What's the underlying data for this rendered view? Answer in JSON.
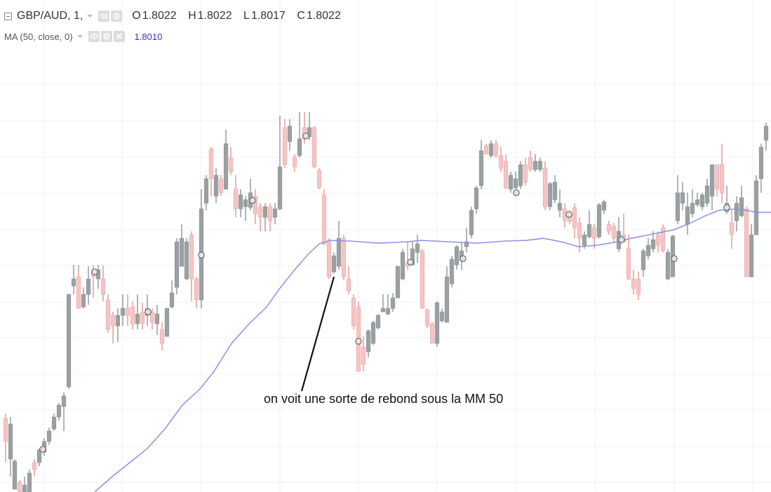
{
  "legend": {
    "symbol": "GBP/AUD, 1,",
    "ohlc": [
      {
        "key": "O",
        "value": "1.8022"
      },
      {
        "key": "H",
        "value": "1.8022"
      },
      {
        "key": "L",
        "value": "1.8017"
      },
      {
        "key": "C",
        "value": "1.8022"
      }
    ]
  },
  "indicator": {
    "label": "MA (50, close, 0)",
    "value": "1.8010"
  },
  "annotation": {
    "text": "on voit une sorte de rebond sous la MM 50"
  },
  "colors": {
    "up_candle": "#9aa1a3",
    "down_candle": "#f6c4c4",
    "down_wick": "#d9877f",
    "ma_line": "#8d8fe8",
    "ma_value": "#3034c9",
    "grid": "#f0f0f0"
  },
  "chart_data": {
    "type": "candlestick",
    "symbol": "GBP/AUD",
    "interval": "1",
    "series": [
      {
        "name": "MA (50, close, 0)",
        "values": [
          1.7966,
          1.7968,
          1.797,
          1.7972,
          1.7974,
          1.7977,
          1.7979,
          1.7983,
          1.7986,
          1.799,
          1.7993,
          1.7997,
          1.8,
          1.8003,
          1.8006,
          1.8009,
          1.801,
          1.801,
          1.801,
          1.801,
          1.801,
          1.801,
          1.801,
          1.801,
          1.801,
          1.801,
          1.8009,
          1.8009,
          1.801,
          1.8011,
          1.8012,
          1.8013,
          1.8015
        ]
      }
    ]
  }
}
